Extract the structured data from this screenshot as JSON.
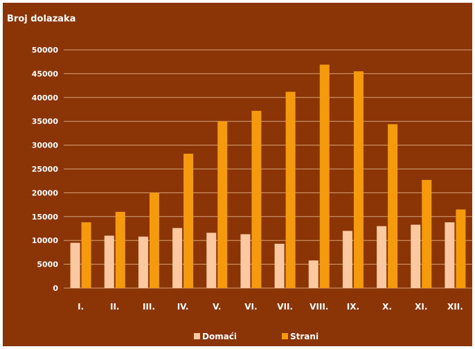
{
  "chart_data": {
    "type": "bar",
    "title": "Broj dolazaka",
    "xlabel": "",
    "ylabel": "",
    "categories": [
      "I.",
      "II.",
      "III.",
      "IV.",
      "V.",
      "VI.",
      "VII.",
      "VIII.",
      "IX.",
      "X.",
      "XI.",
      "XII."
    ],
    "series": [
      {
        "name": "Domaći",
        "values": [
          9500,
          11000,
          10800,
          12600,
          11600,
          11300,
          9300,
          5800,
          12000,
          13000,
          13300,
          13800
        ],
        "color": "#fbc8a0"
      },
      {
        "name": "Strani",
        "values": [
          13800,
          16000,
          20000,
          28200,
          35000,
          37200,
          41200,
          46900,
          45500,
          34400,
          22700,
          16500
        ],
        "color": "#f59a0c"
      }
    ],
    "ylim": [
      0,
      50000
    ],
    "yticks": [
      0,
      5000,
      10000,
      15000,
      20000,
      25000,
      30000,
      35000,
      40000,
      45000,
      50000
    ],
    "grid": true,
    "legend_position": "bottom",
    "background_color": "#8b3406",
    "gridline_color": "#d9a37a"
  }
}
